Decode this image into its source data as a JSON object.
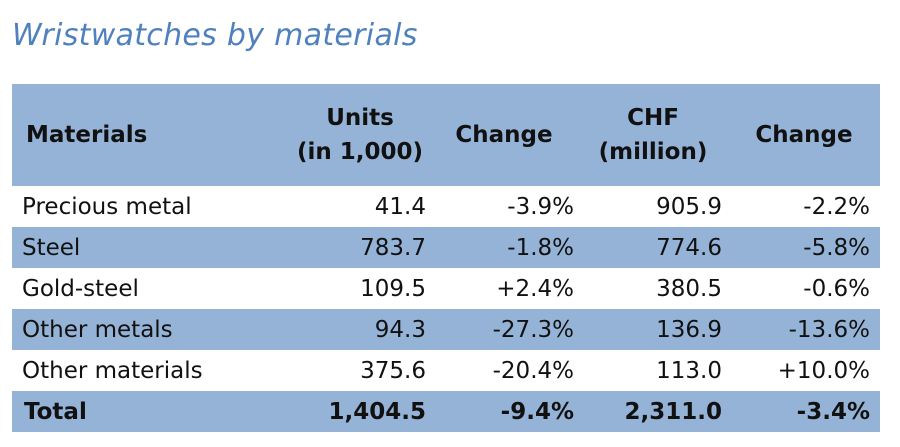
{
  "chart_data": {
    "type": "table",
    "title": "Wristwatches by materials",
    "columns": [
      {
        "key": "material",
        "label_lines": [
          "Materials"
        ]
      },
      {
        "key": "units",
        "label_lines": [
          "Units",
          "(in 1,000)"
        ]
      },
      {
        "key": "units_change",
        "label_lines": [
          "Change"
        ]
      },
      {
        "key": "chf",
        "label_lines": [
          "CHF",
          "(million)"
        ]
      },
      {
        "key": "chf_change",
        "label_lines": [
          "Change"
        ]
      }
    ],
    "rows": [
      {
        "material": "Precious metal",
        "units": "41.4",
        "units_change": "-3.9%",
        "chf": "905.9",
        "chf_change": "-2.2%"
      },
      {
        "material": "Steel",
        "units": "783.7",
        "units_change": "-1.8%",
        "chf": "774.6",
        "chf_change": "-5.8%"
      },
      {
        "material": "Gold-steel",
        "units": "109.5",
        "units_change": "+2.4%",
        "chf": "380.5",
        "chf_change": "-0.6%"
      },
      {
        "material": "Other metals",
        "units": "94.3",
        "units_change": "-27.3%",
        "chf": "136.9",
        "chf_change": "-13.6%"
      },
      {
        "material": "Other materials",
        "units": "375.6",
        "units_change": "-20.4%",
        "chf": "113.0",
        "chf_change": "+10.0%"
      }
    ],
    "total": {
      "material": "Total",
      "units": "1,404.5",
      "units_change": "-9.4%",
      "chf": "2,311.0",
      "chf_change": "-3.4%"
    }
  },
  "colors": {
    "header_band": "#95b3d7",
    "title": "#4f81bd",
    "text": "#111111"
  }
}
